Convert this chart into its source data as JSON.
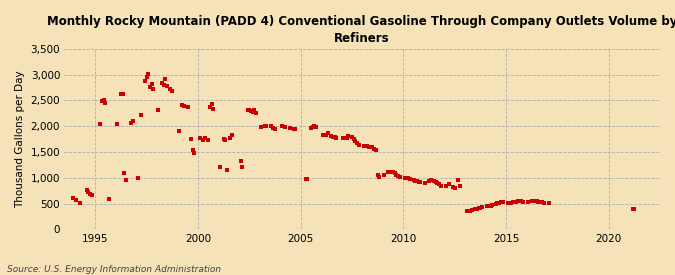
{
  "title": "Monthly Rocky Mountain (PADD 4) Conventional Gasoline Through Company Outlets Volume by\nRefiners",
  "ylabel": "Thousand Gallons per Day",
  "source": "Source: U.S. Energy Information Administration",
  "background_color": "#f5e2b8",
  "plot_background_color": "#f5e2b8",
  "dot_color": "#cc0000",
  "dot_size": 7,
  "ylim": [
    0,
    3500
  ],
  "yticks": [
    0,
    500,
    1000,
    1500,
    2000,
    2500,
    3000,
    3500
  ],
  "ytick_labels": [
    "0",
    "500",
    "1,000",
    "1,500",
    "2,000",
    "2,500",
    "3,000",
    "3,500"
  ],
  "xlim_start": 1993.5,
  "xlim_end": 2022.5,
  "xtick_years": [
    1995,
    2000,
    2005,
    2010,
    2015,
    2020
  ],
  "data": [
    [
      1993.917,
      605
    ],
    [
      1994.083,
      575
    ],
    [
      1994.25,
      510
    ],
    [
      1994.583,
      760
    ],
    [
      1994.667,
      720
    ],
    [
      1994.75,
      695
    ],
    [
      1994.833,
      660
    ],
    [
      1995.25,
      2040
    ],
    [
      1995.333,
      2490
    ],
    [
      1995.417,
      2500
    ],
    [
      1995.5,
      2450
    ],
    [
      1995.667,
      580
    ],
    [
      1996.083,
      2050
    ],
    [
      1996.25,
      2630
    ],
    [
      1996.333,
      2620
    ],
    [
      1996.417,
      1100
    ],
    [
      1996.5,
      950
    ],
    [
      1996.75,
      2060
    ],
    [
      1996.833,
      2110
    ],
    [
      1997.083,
      1000
    ],
    [
      1997.25,
      2220
    ],
    [
      1997.417,
      2870
    ],
    [
      1997.5,
      2950
    ],
    [
      1997.583,
      3020
    ],
    [
      1997.667,
      2760
    ],
    [
      1997.75,
      2820
    ],
    [
      1997.833,
      2730
    ],
    [
      1998.083,
      2310
    ],
    [
      1998.25,
      2840
    ],
    [
      1998.333,
      2800
    ],
    [
      1998.417,
      2920
    ],
    [
      1998.5,
      2780
    ],
    [
      1998.667,
      2720
    ],
    [
      1998.75,
      2680
    ],
    [
      1999.083,
      1900
    ],
    [
      1999.25,
      2420
    ],
    [
      1999.333,
      2390
    ],
    [
      1999.5,
      2370
    ],
    [
      1999.667,
      1750
    ],
    [
      1999.75,
      1530
    ],
    [
      1999.833,
      1490
    ],
    [
      2000.083,
      1780
    ],
    [
      2000.25,
      1730
    ],
    [
      2000.333,
      1770
    ],
    [
      2000.5,
      1740
    ],
    [
      2000.583,
      2380
    ],
    [
      2000.667,
      2440
    ],
    [
      2000.75,
      2340
    ],
    [
      2001.083,
      1200
    ],
    [
      2001.25,
      1760
    ],
    [
      2001.333,
      1740
    ],
    [
      2001.417,
      1160
    ],
    [
      2001.583,
      1780
    ],
    [
      2001.667,
      1840
    ],
    [
      2002.083,
      1330
    ],
    [
      2002.167,
      1200
    ],
    [
      2002.417,
      2320
    ],
    [
      2002.5,
      2310
    ],
    [
      2002.583,
      2290
    ],
    [
      2002.667,
      2270
    ],
    [
      2002.75,
      2310
    ],
    [
      2002.833,
      2260
    ],
    [
      2003.083,
      1990
    ],
    [
      2003.25,
      2010
    ],
    [
      2003.333,
      2000
    ],
    [
      2003.583,
      2000
    ],
    [
      2003.667,
      1970
    ],
    [
      2003.75,
      1950
    ],
    [
      2004.083,
      2000
    ],
    [
      2004.25,
      1980
    ],
    [
      2004.5,
      1960
    ],
    [
      2004.667,
      1950
    ],
    [
      2004.75,
      1940
    ],
    [
      2005.25,
      975
    ],
    [
      2005.333,
      985
    ],
    [
      2005.5,
      1960
    ],
    [
      2005.583,
      1980
    ],
    [
      2005.667,
      2000
    ],
    [
      2005.75,
      1990
    ],
    [
      2006.083,
      1830
    ],
    [
      2006.25,
      1840
    ],
    [
      2006.333,
      1860
    ],
    [
      2006.5,
      1810
    ],
    [
      2006.583,
      1800
    ],
    [
      2006.667,
      1790
    ],
    [
      2006.75,
      1770
    ],
    [
      2007.083,
      1770
    ],
    [
      2007.25,
      1780
    ],
    [
      2007.333,
      1820
    ],
    [
      2007.5,
      1790
    ],
    [
      2007.583,
      1760
    ],
    [
      2007.667,
      1720
    ],
    [
      2007.75,
      1680
    ],
    [
      2007.833,
      1640
    ],
    [
      2008.083,
      1620
    ],
    [
      2008.25,
      1610
    ],
    [
      2008.333,
      1600
    ],
    [
      2008.5,
      1590
    ],
    [
      2008.583,
      1560
    ],
    [
      2008.667,
      1530
    ],
    [
      2008.75,
      1060
    ],
    [
      2008.833,
      1010
    ],
    [
      2009.083,
      1060
    ],
    [
      2009.25,
      1110
    ],
    [
      2009.333,
      1120
    ],
    [
      2009.5,
      1110
    ],
    [
      2009.583,
      1090
    ],
    [
      2009.667,
      1060
    ],
    [
      2009.75,
      1040
    ],
    [
      2009.833,
      1010
    ],
    [
      2010.083,
      1000
    ],
    [
      2010.25,
      990
    ],
    [
      2010.333,
      980
    ],
    [
      2010.5,
      960
    ],
    [
      2010.583,
      940
    ],
    [
      2010.667,
      930
    ],
    [
      2010.75,
      920
    ],
    [
      2010.833,
      910
    ],
    [
      2011.083,
      900
    ],
    [
      2011.25,
      940
    ],
    [
      2011.333,
      950
    ],
    [
      2011.5,
      940
    ],
    [
      2011.583,
      920
    ],
    [
      2011.667,
      900
    ],
    [
      2011.75,
      870
    ],
    [
      2011.833,
      850
    ],
    [
      2012.083,
      840
    ],
    [
      2012.25,
      870
    ],
    [
      2012.417,
      830
    ],
    [
      2012.5,
      810
    ],
    [
      2012.667,
      950
    ],
    [
      2012.75,
      840
    ],
    [
      2013.083,
      360
    ],
    [
      2013.25,
      360
    ],
    [
      2013.333,
      370
    ],
    [
      2013.5,
      390
    ],
    [
      2013.583,
      400
    ],
    [
      2013.667,
      410
    ],
    [
      2013.75,
      420
    ],
    [
      2013.833,
      430
    ],
    [
      2014.083,
      450
    ],
    [
      2014.25,
      460
    ],
    [
      2014.333,
      475
    ],
    [
      2014.5,
      490
    ],
    [
      2014.583,
      505
    ],
    [
      2014.667,
      515
    ],
    [
      2014.75,
      525
    ],
    [
      2014.833,
      530
    ],
    [
      2015.083,
      510
    ],
    [
      2015.25,
      520
    ],
    [
      2015.333,
      530
    ],
    [
      2015.5,
      540
    ],
    [
      2015.583,
      545
    ],
    [
      2015.667,
      548
    ],
    [
      2015.75,
      545
    ],
    [
      2015.833,
      540
    ],
    [
      2016.083,
      535
    ],
    [
      2016.25,
      545
    ],
    [
      2016.333,
      548
    ],
    [
      2016.5,
      542
    ],
    [
      2016.583,
      538
    ],
    [
      2016.667,
      532
    ],
    [
      2016.75,
      525
    ],
    [
      2016.833,
      518
    ],
    [
      2017.083,
      505
    ],
    [
      2021.167,
      400
    ],
    [
      2021.25,
      385
    ]
  ]
}
